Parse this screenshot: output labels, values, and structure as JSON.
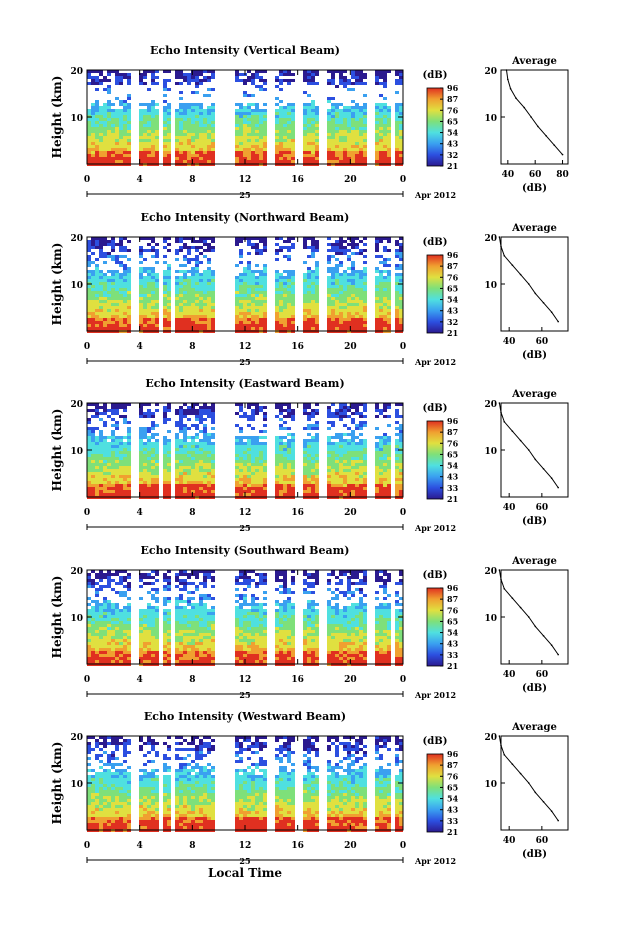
{
  "chart_data": [
    {
      "type": "heatmap",
      "title": "Echo Intensity (Vertical Beam)",
      "ylabel": "Height (km)",
      "yticks": [
        "20",
        "10"
      ],
      "xticks": [
        "0",
        "4",
        "8",
        "12",
        "16",
        "20",
        "0"
      ],
      "date_label": "25",
      "month_label": "Apr 2012",
      "xlim": [
        0,
        24
      ],
      "ylim": [
        0,
        20
      ],
      "colorbar": {
        "unit": "(dB)",
        "ticks": [
          "96",
          "87",
          "76",
          "65",
          "54",
          "43",
          "32",
          "21"
        ]
      },
      "profile": {
        "title": "Average",
        "xlabel": "(dB)",
        "xticks": [
          "40",
          "60",
          "80"
        ],
        "yticks": [
          "20",
          "10"
        ],
        "height": [
          2,
          4,
          6,
          8,
          10,
          12,
          14,
          16,
          18,
          20
        ],
        "values": [
          80,
          74,
          68,
          62,
          57,
          52,
          46,
          42,
          40,
          39
        ]
      }
    },
    {
      "type": "heatmap",
      "title": "Echo Intensity (Northward Beam)",
      "ylabel": "Height (km)",
      "yticks": [
        "20",
        "10"
      ],
      "xticks": [
        "0",
        "4",
        "8",
        "12",
        "16",
        "20",
        "0"
      ],
      "date_label": "25",
      "month_label": "Apr 2012",
      "xlim": [
        0,
        24
      ],
      "ylim": [
        0,
        20
      ],
      "colorbar": {
        "unit": "(dB)",
        "ticks": [
          "96",
          "87",
          "76",
          "65",
          "54",
          "43",
          "32",
          "21"
        ]
      },
      "profile": {
        "title": "Average",
        "xlabel": "(dB)",
        "xticks": [
          "40",
          "60"
        ],
        "yticks": [
          "20",
          "10"
        ],
        "height": [
          2,
          4,
          6,
          8,
          10,
          12,
          14,
          16,
          18,
          20
        ],
        "values": [
          70,
          66,
          61,
          56,
          52,
          47,
          42,
          37,
          35,
          34
        ]
      }
    },
    {
      "type": "heatmap",
      "title": "Echo Intensity (Eastward Beam)",
      "ylabel": "Height (km)",
      "yticks": [
        "20",
        "10"
      ],
      "xticks": [
        "0",
        "4",
        "8",
        "12",
        "16",
        "20",
        "0"
      ],
      "date_label": "25",
      "month_label": "Apr 2012",
      "xlim": [
        0,
        24
      ],
      "ylim": [
        0,
        20
      ],
      "colorbar": {
        "unit": "(dB)",
        "ticks": [
          "96",
          "87",
          "76",
          "65",
          "54",
          "43",
          "33",
          "21"
        ]
      },
      "profile": {
        "title": "Average",
        "xlabel": "(dB)",
        "xticks": [
          "40",
          "60"
        ],
        "yticks": [
          "20",
          "10"
        ],
        "height": [
          2,
          4,
          6,
          8,
          10,
          12,
          14,
          16,
          18,
          20
        ],
        "values": [
          70,
          66,
          61,
          56,
          52,
          47,
          42,
          37,
          35,
          34
        ]
      }
    },
    {
      "type": "heatmap",
      "title": "Echo Intensity (Southward Beam)",
      "ylabel": "Height (km)",
      "yticks": [
        "20",
        "10"
      ],
      "xticks": [
        "0",
        "4",
        "8",
        "12",
        "16",
        "20",
        "0"
      ],
      "date_label": "25",
      "month_label": "Apr 2012",
      "xlim": [
        0,
        24
      ],
      "ylim": [
        0,
        20
      ],
      "colorbar": {
        "unit": "(dB)",
        "ticks": [
          "96",
          "87",
          "76",
          "65",
          "54",
          "43",
          "33",
          "21"
        ]
      },
      "profile": {
        "title": "Average",
        "xlabel": "(dB)",
        "xticks": [
          "40",
          "60"
        ],
        "yticks": [
          "20",
          "10"
        ],
        "height": [
          2,
          4,
          6,
          8,
          10,
          12,
          14,
          16,
          18,
          20
        ],
        "values": [
          70,
          66,
          61,
          56,
          52,
          47,
          42,
          37,
          35,
          34
        ]
      }
    },
    {
      "type": "heatmap",
      "title": "Echo Intensity (Westward Beam)",
      "ylabel": "Height (km)",
      "yticks": [
        "20",
        "10"
      ],
      "xticks": [
        "0",
        "4",
        "8",
        "12",
        "16",
        "20",
        "0"
      ],
      "date_label": "25",
      "month_label": "Apr 2012",
      "xlim": [
        0,
        24
      ],
      "ylim": [
        0,
        20
      ],
      "colorbar": {
        "unit": "(dB)",
        "ticks": [
          "96",
          "87",
          "76",
          "65",
          "54",
          "43",
          "33",
          "21"
        ]
      },
      "profile": {
        "title": "Average",
        "xlabel": "(dB)",
        "xticks": [
          "40",
          "60"
        ],
        "yticks": [
          "20",
          "10"
        ],
        "height": [
          2,
          4,
          6,
          8,
          10,
          12,
          14,
          16,
          18,
          20
        ],
        "values": [
          70,
          66,
          61,
          56,
          52,
          47,
          42,
          37,
          35,
          34
        ]
      }
    }
  ],
  "xlabel": "Local Time",
  "data_gaps_hours": [
    [
      3.2,
      3.7
    ],
    [
      5.2,
      5.7
    ],
    [
      6.1,
      6.6
    ],
    [
      9.7,
      11.2
    ],
    [
      13.5,
      14.0
    ],
    [
      15.7,
      16.2
    ],
    [
      17.5,
      18.0
    ],
    [
      21.1,
      21.6
    ],
    [
      22.9,
      23.3
    ]
  ],
  "colormap": [
    "#2b1a8f",
    "#2c4fe0",
    "#3aa0f0",
    "#4fe0e0",
    "#7ee07a",
    "#e0e040",
    "#f0a030",
    "#e03020"
  ]
}
